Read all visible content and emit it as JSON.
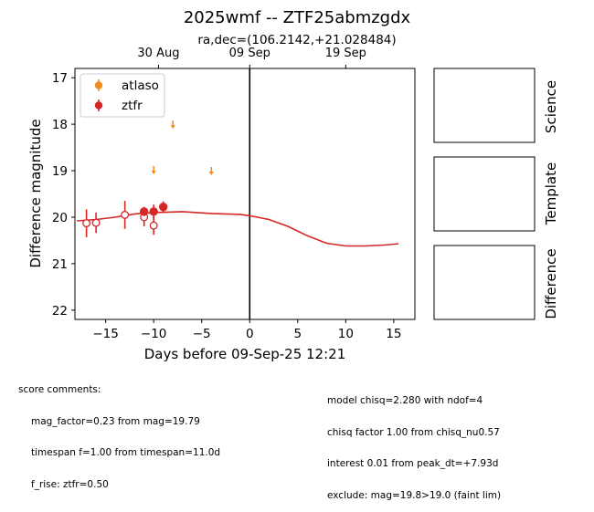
{
  "chart_data": {
    "type": "scatter",
    "title": "2025wmf -- ZTF25abmzgdx",
    "subtitle": "ra,dec=(106.2142,+21.028484)",
    "xlabel": "Days before 09-Sep-25 12:21",
    "ylabel": "Difference magnitude",
    "xlim": [
      -18.2,
      17.2
    ],
    "ylim": [
      22.2,
      16.8
    ],
    "inverted_y": true,
    "x_ticks": [
      -15,
      -10,
      -5,
      0,
      5,
      10,
      15
    ],
    "x_tick_labels": [
      "−15",
      "−10",
      "−5",
      "0",
      "5",
      "10",
      "15"
    ],
    "y_ticks": [
      17,
      18,
      19,
      20,
      21,
      22
    ],
    "top_axis_ticks": [
      {
        "x": -9.5,
        "label": "30 Aug"
      },
      {
        "x": 0.0,
        "label": "09 Sep"
      },
      {
        "x": 10.0,
        "label": "19 Sep"
      }
    ],
    "vertical_line_x": 0,
    "legend": {
      "placement": "top-left",
      "entries": [
        "atlaso",
        "ztfr"
      ]
    },
    "series": [
      {
        "name": "atlaso",
        "color": "#f28a1e",
        "upper_limits": [
          {
            "x": -8,
            "y": 18.0
          },
          {
            "x": -10,
            "y": 18.98
          },
          {
            "x": -4,
            "y": 19.0
          }
        ]
      },
      {
        "name": "ztfr",
        "color": "#d62728",
        "detections_filled": [
          {
            "x": -11,
            "y": 19.88,
            "err": 0.1
          },
          {
            "x": -10,
            "y": 19.88,
            "err": 0.15
          },
          {
            "x": -9,
            "y": 19.78,
            "err": 0.12
          }
        ],
        "detections_open": [
          {
            "x": -17,
            "y": 20.13,
            "err": 0.3
          },
          {
            "x": -16,
            "y": 20.12,
            "err": 0.22
          },
          {
            "x": -13,
            "y": 19.95,
            "err": 0.3
          },
          {
            "x": -11,
            "y": 20.0,
            "err": 0.2
          },
          {
            "x": -10,
            "y": 20.18,
            "err": 0.2
          }
        ],
        "model_curve": [
          [
            -18,
            20.08
          ],
          [
            -16,
            20.05
          ],
          [
            -14,
            20.0
          ],
          [
            -12,
            19.93
          ],
          [
            -10,
            19.9
          ],
          [
            -7,
            19.88
          ],
          [
            -4,
            19.92
          ],
          [
            -1,
            19.94
          ],
          [
            0,
            19.97
          ],
          [
            2,
            20.05
          ],
          [
            4,
            20.2
          ],
          [
            6,
            20.4
          ],
          [
            8,
            20.56
          ],
          [
            10,
            20.62
          ],
          [
            12,
            20.62
          ],
          [
            14,
            20.6
          ],
          [
            15.5,
            20.57
          ]
        ]
      }
    ]
  },
  "panels": {
    "science_label": "Science",
    "template_label": "Template",
    "difference_label": "Difference"
  },
  "comments_left": {
    "header": "score comments:",
    "lines": [
      "mag_factor=0.23 from mag=19.79",
      "timespan f=1.00 from timespan=11.0d",
      "f_rise: ztfr=0.50"
    ]
  },
  "comments_right": {
    "lines": [
      "model chisq=2.280 with ndof=4",
      "chisq factor 1.00 from chisq_nu0.57",
      "interest 0.01 from peak_dt=+7.93d",
      "exclude: mag=19.8>19.0 (faint lim)"
    ]
  }
}
